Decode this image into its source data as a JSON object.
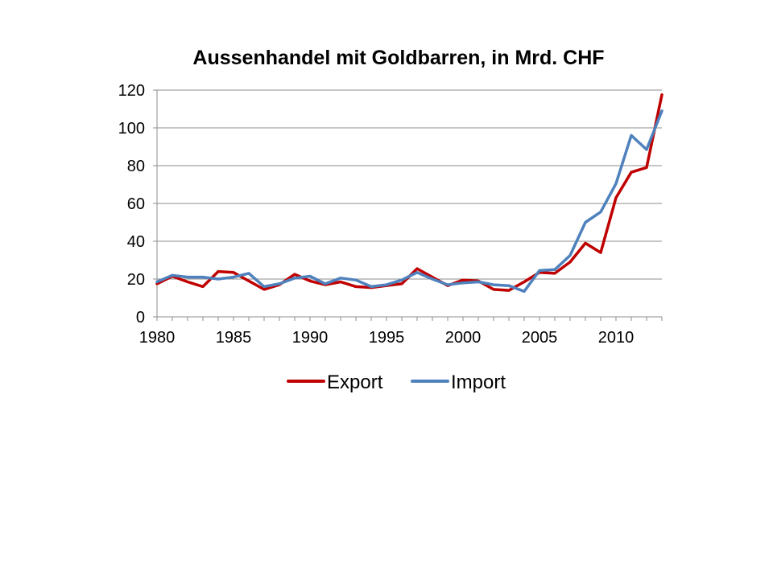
{
  "chart_data": {
    "type": "line",
    "title": "Aussenhandel mit Goldbarren, in Mrd. CHF",
    "xlabel": "",
    "ylabel": "",
    "xlim": [
      1980,
      2013
    ],
    "ylim": [
      0,
      120
    ],
    "y_ticks": [
      0,
      20,
      40,
      60,
      80,
      100,
      120
    ],
    "x_ticks": [
      1980,
      1985,
      1990,
      1995,
      2000,
      2005,
      2010
    ],
    "grid": "horizontal",
    "legend_position": "bottom",
    "x": [
      1980,
      1981,
      1982,
      1983,
      1984,
      1985,
      1986,
      1987,
      1988,
      1989,
      1990,
      1991,
      1992,
      1993,
      1994,
      1995,
      1996,
      1997,
      1998,
      1999,
      2000,
      2001,
      2002,
      2003,
      2004,
      2005,
      2006,
      2007,
      2008,
      2009,
      2010,
      2011,
      2012,
      2013
    ],
    "series": [
      {
        "name": "Export",
        "color": "#c00000",
        "values": [
          17.5,
          21.5,
          18.5,
          16,
          24,
          23.5,
          19,
          14.5,
          17,
          22.5,
          19,
          17,
          18.5,
          16,
          15.5,
          16.5,
          17.5,
          25.5,
          21,
          16.5,
          19.5,
          19,
          14.5,
          14,
          18.5,
          23.5,
          23,
          29,
          39,
          34,
          63,
          76.5,
          79,
          117.5
        ]
      },
      {
        "name": "Import",
        "color": "#4f81bd",
        "values": [
          18.5,
          22,
          21,
          21,
          20,
          21,
          23,
          16,
          17.5,
          20.5,
          21.5,
          17.5,
          20.5,
          19.5,
          16,
          17,
          19.5,
          23.5,
          20,
          17,
          18,
          18.5,
          17,
          16.5,
          13.5,
          24.5,
          25,
          32.5,
          50,
          55.5,
          70.5,
          96,
          88.5,
          109
        ]
      }
    ]
  }
}
